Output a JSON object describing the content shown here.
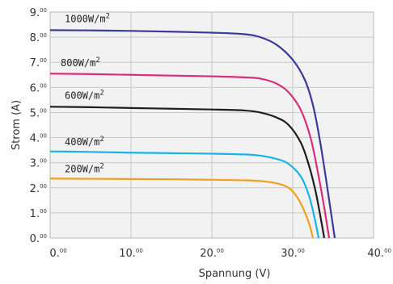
{
  "chart_data": {
    "type": "line",
    "xlabel": "Spannung (V)",
    "ylabel": "Strom (A)",
    "xlim": [
      0,
      40
    ],
    "ylim": [
      0,
      9
    ],
    "grid": true,
    "x_ticks": [
      {
        "main": "0.",
        "sup": "00"
      },
      {
        "main": "10.",
        "sup": "00"
      },
      {
        "main": "20.",
        "sup": "00"
      },
      {
        "main": "30.",
        "sup": "00"
      },
      {
        "main": "40.",
        "sup": "00"
      }
    ],
    "y_ticks": [
      {
        "main": "0.",
        "sup": "00"
      },
      {
        "main": "1.",
        "sup": "00"
      },
      {
        "main": "2.",
        "sup": "00"
      },
      {
        "main": "3.",
        "sup": "00"
      },
      {
        "main": "4.",
        "sup": "00"
      },
      {
        "main": "5.",
        "sup": "00"
      },
      {
        "main": "6.",
        "sup": "00"
      },
      {
        "main": "7.",
        "sup": "00"
      },
      {
        "main": "8.",
        "sup": "00"
      },
      {
        "main": "9.",
        "sup": "00"
      }
    ],
    "series": [
      {
        "label_main": "1000W/m",
        "label_sup": "2",
        "label_at": [
          1,
          8.6
        ],
        "color": "#3b3a98",
        "points": [
          [
            0,
            8.28
          ],
          [
            5,
            8.27
          ],
          [
            10,
            8.25
          ],
          [
            15,
            8.22
          ],
          [
            20,
            8.18
          ],
          [
            24,
            8.12
          ],
          [
            26,
            8.0
          ],
          [
            28,
            7.7
          ],
          [
            30,
            7.1
          ],
          [
            31.5,
            6.3
          ],
          [
            32.5,
            5.3
          ],
          [
            33.3,
            4.0
          ],
          [
            34,
            2.6
          ],
          [
            34.6,
            1.3
          ],
          [
            35.2,
            0
          ]
        ]
      },
      {
        "label_main": "800W/m",
        "label_sup": "2",
        "label_at": [
          0.5,
          6.85
        ],
        "color": "#d6307a",
        "points": [
          [
            0,
            6.55
          ],
          [
            5,
            6.53
          ],
          [
            10,
            6.5
          ],
          [
            15,
            6.47
          ],
          [
            20,
            6.44
          ],
          [
            24,
            6.4
          ],
          [
            26,
            6.35
          ],
          [
            28,
            6.15
          ],
          [
            29.5,
            5.8
          ],
          [
            31,
            5.1
          ],
          [
            32.2,
            4.0
          ],
          [
            33,
            2.8
          ],
          [
            33.8,
            1.4
          ],
          [
            34.5,
            0
          ]
        ]
      },
      {
        "label_main": "600W/m",
        "label_sup": "2",
        "label_at": [
          1,
          5.55
        ],
        "color": "#1e1e1e",
        "points": [
          [
            0,
            5.23
          ],
          [
            5,
            5.21
          ],
          [
            10,
            5.18
          ],
          [
            15,
            5.15
          ],
          [
            20,
            5.12
          ],
          [
            24,
            5.08
          ],
          [
            26,
            5.0
          ],
          [
            28,
            4.8
          ],
          [
            29.5,
            4.5
          ],
          [
            31,
            3.8
          ],
          [
            32,
            2.9
          ],
          [
            32.8,
            1.9
          ],
          [
            33.4,
            0.9
          ],
          [
            33.9,
            0
          ]
        ]
      },
      {
        "label_main": "400W/m",
        "label_sup": "2",
        "label_at": [
          1,
          3.7
        ],
        "color": "#18b4e8",
        "points": [
          [
            0,
            3.45
          ],
          [
            5,
            3.43
          ],
          [
            10,
            3.4
          ],
          [
            15,
            3.38
          ],
          [
            20,
            3.36
          ],
          [
            24,
            3.33
          ],
          [
            26,
            3.28
          ],
          [
            28,
            3.15
          ],
          [
            29.5,
            2.95
          ],
          [
            31,
            2.45
          ],
          [
            32,
            1.7
          ],
          [
            32.7,
            0.8
          ],
          [
            33.2,
            0
          ]
        ]
      },
      {
        "label_main": "200W/m",
        "label_sup": "2",
        "label_at": [
          1,
          2.62
        ],
        "color": "#f0a020",
        "points": [
          [
            0,
            2.37
          ],
          [
            5,
            2.36
          ],
          [
            10,
            2.35
          ],
          [
            15,
            2.34
          ],
          [
            20,
            2.32
          ],
          [
            24,
            2.3
          ],
          [
            26,
            2.27
          ],
          [
            28,
            2.18
          ],
          [
            29.5,
            2.0
          ],
          [
            30.5,
            1.65
          ],
          [
            31.4,
            1.1
          ],
          [
            32.1,
            0.5
          ],
          [
            32.5,
            0
          ]
        ]
      }
    ]
  }
}
